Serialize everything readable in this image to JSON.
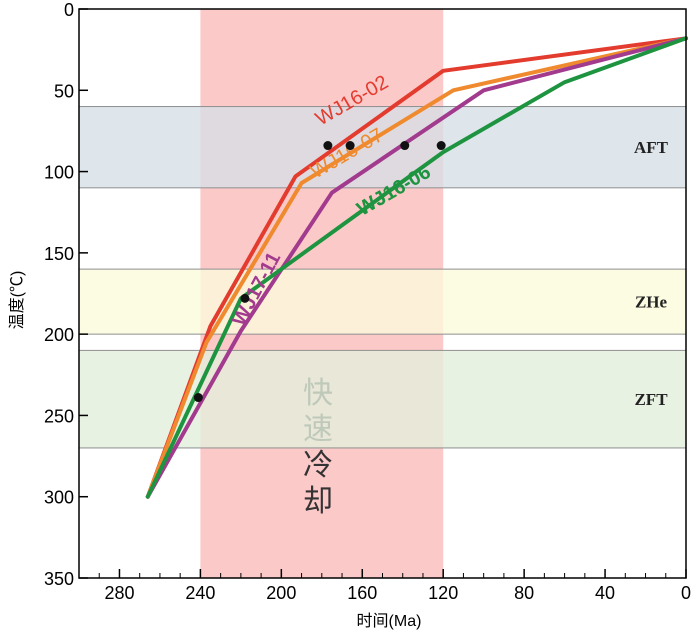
{
  "chart_data": {
    "type": "line",
    "xlabel": "时间(Ma)",
    "ylabel": "温度(℃)",
    "xlim": [
      300,
      0
    ],
    "ylim": [
      350,
      0
    ],
    "x_ticks": [
      280,
      240,
      200,
      160,
      120,
      80,
      40,
      0
    ],
    "y_ticks": [
      0,
      50,
      100,
      150,
      200,
      250,
      300,
      350
    ],
    "highlight": {
      "x_range": [
        240,
        120
      ],
      "label": "快速冷却",
      "color": "#fcc9c9"
    },
    "bands": [
      {
        "label": "AFT",
        "y_range": [
          60,
          110
        ],
        "color": "#d6dfe6"
      },
      {
        "label": "ZHe",
        "y_range": [
          160,
          200
        ],
        "color": "#fbfbdc"
      },
      {
        "label": "ZFT",
        "y_range": [
          210,
          270
        ],
        "color": "#e2efdc"
      }
    ],
    "series": [
      {
        "name": "WJ16-02",
        "color": "#e33b2e",
        "x": [
          266,
          235,
          193,
          120,
          0
        ],
        "y": [
          300,
          195,
          103,
          38,
          18
        ]
      },
      {
        "name": "WJ16-07",
        "color": "#ef8a2e",
        "x": [
          266,
          237,
          190,
          115,
          0
        ],
        "y": [
          300,
          205,
          107,
          50,
          18
        ]
      },
      {
        "name": "WJ17-11",
        "color": "#a23a8e",
        "x": [
          266,
          220,
          175,
          100,
          0
        ],
        "y": [
          300,
          198,
          113,
          50,
          18
        ]
      },
      {
        "name": "WJ16-06",
        "color": "#1e9440",
        "x": [
          266,
          220,
          170,
          120,
          60,
          0
        ],
        "y": [
          300,
          178,
          133,
          88,
          45,
          18
        ]
      }
    ],
    "points": [
      {
        "x": 177,
        "y": 84
      },
      {
        "x": 166,
        "y": 84
      },
      {
        "x": 139,
        "y": 84
      },
      {
        "x": 121,
        "y": 84
      },
      {
        "x": 218,
        "y": 178
      },
      {
        "x": 241,
        "y": 239
      }
    ]
  }
}
